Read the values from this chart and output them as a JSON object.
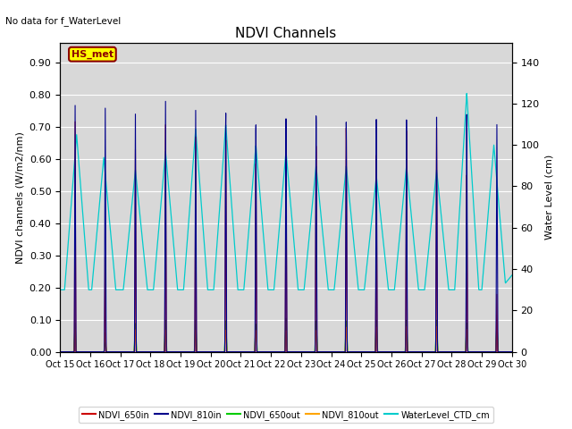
{
  "title": "NDVI Channels",
  "ylabel_left": "NDVI channels (W/m2/nm)",
  "ylabel_right": "Water Level (cm)",
  "ylim_left": [
    0.0,
    0.96
  ],
  "ylim_right": [
    0,
    149.333
  ],
  "no_data_text": "No data for f_WaterLevel",
  "annotation_text": "HS_met",
  "annotation_bg": "#FFFF00",
  "annotation_border": "#8B0000",
  "plot_bg": "#D8D8D8",
  "fig_bg": "#FFFFFF",
  "legend_entries": [
    "NDVI_650in",
    "NDVI_810in",
    "NDVI_650out",
    "NDVI_810out",
    "WaterLevel_CTD_cm"
  ],
  "legend_colors": [
    "#CC0000",
    "#00008B",
    "#00CC00",
    "#FFA500",
    "#00CCCC"
  ],
  "xtick_labels": [
    "Oct 15",
    "Oct 16",
    "Oct 17",
    "Oct 18",
    "Oct 19",
    "Oct 20",
    "Oct 21",
    "Oct 22",
    "Oct 23",
    "Oct 24",
    "Oct 25",
    "Oct 26",
    "Oct 27",
    "Oct 28",
    "Oct 29",
    "Oct 30"
  ],
  "n_days": 15,
  "peak_810in": [
    0.77,
    0.77,
    0.76,
    0.81,
    0.79,
    0.79,
    0.76,
    0.79,
    0.79,
    0.76,
    0.76,
    0.75,
    0.75,
    0.75,
    0.71
  ],
  "peak_650in": [
    0.72,
    0.3,
    0.65,
    0.74,
    0.71,
    0.71,
    0.64,
    0.72,
    0.7,
    0.75,
    0.65,
    0.72,
    0.72,
    0.56,
    0.18
  ],
  "peak_650out": [
    0.09,
    0.03,
    0.09,
    0.1,
    0.1,
    0.1,
    0.09,
    0.11,
    0.1,
    0.1,
    0.1,
    0.1,
    0.1,
    0.09,
    0.09
  ],
  "peak_810out": [
    0.07,
    0.06,
    0.07,
    0.07,
    0.07,
    0.07,
    0.07,
    0.07,
    0.07,
    0.08,
    0.08,
    0.08,
    0.08,
    0.07,
    0.07
  ],
  "water_peaks_cm": [
    30,
    105,
    94,
    88,
    97,
    108,
    110,
    100,
    97,
    90,
    90,
    85,
    90,
    88,
    125,
    100,
    37
  ],
  "water_base_cm": 30,
  "water_peak_positions": [
    0.0,
    0.55,
    1.45,
    2.5,
    3.5,
    4.5,
    5.5,
    6.5,
    7.5,
    8.5,
    9.5,
    10.5,
    11.5,
    12.5,
    13.5,
    14.4,
    15.0
  ]
}
